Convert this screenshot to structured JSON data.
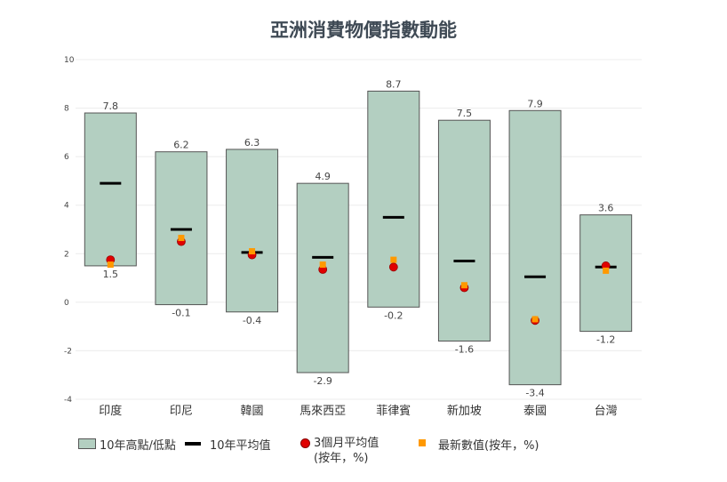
{
  "chart_data": {
    "type": "floating-bar",
    "title": "亞洲消費物價指數動能",
    "xlabel": "",
    "ylabel": "",
    "ylim": [
      -4,
      10
    ],
    "yticks": [
      -4,
      -2,
      0,
      2,
      4,
      6,
      8,
      10
    ],
    "grid": true,
    "legend_position": "bottom",
    "categories": [
      "印度",
      "印尼",
      "韓國",
      "馬來西亞",
      "菲律賓",
      "新加坡",
      "泰國",
      "台灣"
    ],
    "series": [
      {
        "name": "10年高點/低點",
        "high": [
          7.8,
          6.2,
          6.3,
          4.9,
          8.7,
          7.5,
          7.9,
          3.6
        ],
        "low": [
          1.5,
          -0.1,
          -0.4,
          -2.9,
          -0.2,
          -1.6,
          -3.4,
          -1.2
        ]
      },
      {
        "name": "10年平均值",
        "values": [
          4.9,
          3.0,
          2.05,
          1.85,
          3.5,
          1.7,
          1.05,
          1.45
        ]
      },
      {
        "name": "3個月平均值(按年，%)",
        "values": [
          1.75,
          2.5,
          1.95,
          1.35,
          1.45,
          0.6,
          -0.75,
          1.5
        ]
      },
      {
        "name": "最新數值(按年，%)",
        "values": [
          1.55,
          2.65,
          2.1,
          1.55,
          1.75,
          0.7,
          -0.7,
          1.3
        ]
      }
    ],
    "high_labels": [
      "7.8",
      "6.2",
      "6.3",
      "4.9",
      "8.7",
      "7.5",
      "7.9",
      "3.6"
    ],
    "low_labels": [
      "1.5",
      "-0.1",
      "-0.4",
      "-2.9",
      "-0.2",
      "-1.6",
      "-3.4",
      "-1.2"
    ]
  },
  "legend": {
    "range": "10年高點/低點",
    "avg": "10年平均值",
    "three_month_line1": "3個月平均值",
    "three_month_line2": "(按年，%)",
    "latest": "最新數值(按年，%)"
  },
  "colors": {
    "bar": "#b3cfc1",
    "bar_border": "#555555",
    "avg": "#000000",
    "three_month": "#e00000",
    "latest": "#ff9900"
  }
}
